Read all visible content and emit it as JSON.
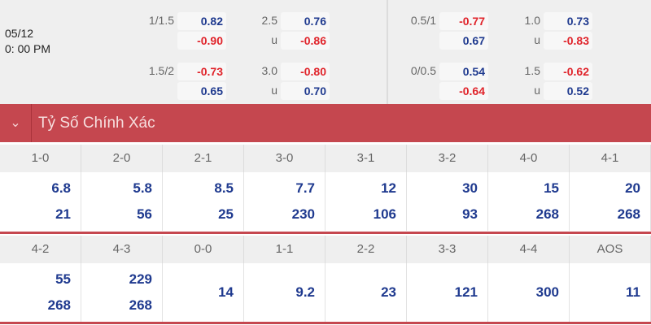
{
  "match": {
    "date": "05/12",
    "time": "0: 00 PM"
  },
  "odds_left": [
    {
      "hcap": "1/1.5",
      "h1": "0.82",
      "h2": "-0.90",
      "ou": "2.5",
      "o1": "0.76",
      "u": "u",
      "o2": "-0.86"
    },
    {
      "hcap": "1.5/2",
      "h1": "-0.73",
      "h2": "0.65",
      "ou": "3.0",
      "o1": "-0.80",
      "u": "u",
      "o2": "0.70"
    }
  ],
  "odds_right": [
    {
      "hcap": "0.5/1",
      "h1": "-0.77",
      "h2": "0.67",
      "ou": "1.0",
      "o1": "0.73",
      "u": "u",
      "o2": "-0.83"
    },
    {
      "hcap": "0/0.5",
      "h1": "0.54",
      "h2": "-0.64",
      "ou": "1.5",
      "o1": "-0.62",
      "u": "u",
      "o2": "0.52"
    }
  ],
  "section": {
    "title": "Tỷ Số Chính Xác",
    "icon": "chevron-down-icon"
  },
  "rows": [
    {
      "scores": [
        "1-0",
        "2-0",
        "2-1",
        "3-0",
        "3-1",
        "3-2",
        "4-0",
        "4-1"
      ],
      "values": [
        [
          "6.8",
          "21"
        ],
        [
          "5.8",
          "56"
        ],
        [
          "8.5",
          "25"
        ],
        [
          "7.7",
          "230"
        ],
        [
          "12",
          "106"
        ],
        [
          "30",
          "93"
        ],
        [
          "15",
          "268"
        ],
        [
          "20",
          "268"
        ]
      ]
    },
    {
      "scores": [
        "4-2",
        "4-3",
        "0-0",
        "1-1",
        "2-2",
        "3-3",
        "4-4",
        "AOS"
      ],
      "values": [
        [
          "55",
          "268"
        ],
        [
          "229",
          "268"
        ],
        [
          "14"
        ],
        [
          "9.2"
        ],
        [
          "23"
        ],
        [
          "121"
        ],
        [
          "300"
        ],
        [
          "11"
        ]
      ]
    }
  ],
  "colors": {
    "header_bar": "#c5474f",
    "positive": "#1f3a8f",
    "negative": "#e0232a"
  }
}
